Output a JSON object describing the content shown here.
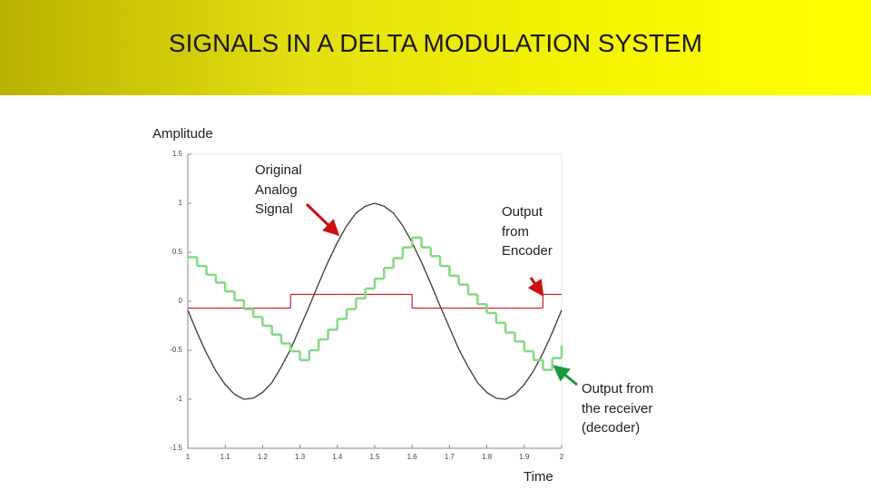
{
  "title": "SIGNALS IN A DELTA MODULATION SYSTEM",
  "chart_data": {
    "type": "line",
    "y_label": "Amplitude",
    "x_label": "Time",
    "xlim": [
      1,
      2
    ],
    "ylim": [
      -1.5,
      1.5
    ],
    "xticks": [
      1,
      1.1,
      1.2,
      1.3,
      1.4,
      1.5,
      1.6,
      1.7,
      1.8,
      1.9,
      2
    ],
    "yticks": [
      -1.5,
      -1,
      -0.5,
      0,
      0.5,
      1,
      1.5
    ],
    "x": [
      1,
      1.025,
      1.05,
      1.075,
      1.1,
      1.125,
      1.15,
      1.175,
      1.2,
      1.225,
      1.25,
      1.275,
      1.3,
      1.325,
      1.35,
      1.375,
      1.4,
      1.425,
      1.45,
      1.475,
      1.5,
      1.525,
      1.55,
      1.575,
      1.6,
      1.625,
      1.65,
      1.675,
      1.7,
      1.725,
      1.75,
      1.775,
      1.8,
      1.825,
      1.85,
      1.875,
      1.9,
      1.925,
      1.95,
      1.975,
      2
    ],
    "series": [
      {
        "color": "#3a3a3a",
        "step": false,
        "values": [
          -0.09,
          -0.32,
          -0.53,
          -0.71,
          -0.85,
          -0.95,
          -1.0,
          -0.99,
          -0.93,
          -0.83,
          -0.67,
          -0.49,
          -0.27,
          -0.05,
          0.18,
          0.4,
          0.6,
          0.77,
          0.9,
          0.97,
          1.0,
          0.97,
          0.9,
          0.77,
          0.6,
          0.4,
          0.18,
          -0.05,
          -0.27,
          -0.49,
          -0.67,
          -0.83,
          -0.93,
          -0.99,
          -1.0,
          -0.95,
          -0.85,
          -0.71,
          -0.53,
          -0.32,
          -0.09
        ]
      },
      {
        "color": "#d42020",
        "step": true,
        "values": [
          -0.07,
          -0.07,
          -0.07,
          -0.07,
          -0.07,
          -0.07,
          -0.07,
          -0.07,
          -0.07,
          -0.07,
          -0.07,
          0.07,
          0.07,
          0.07,
          0.07,
          0.07,
          0.07,
          0.07,
          0.07,
          0.07,
          0.07,
          0.07,
          0.07,
          0.07,
          -0.07,
          -0.07,
          -0.07,
          -0.07,
          -0.07,
          -0.07,
          -0.07,
          -0.07,
          -0.07,
          -0.07,
          -0.07,
          -0.07,
          -0.07,
          -0.07,
          0.07,
          0.07,
          0.07
        ]
      },
      {
        "color": "#86d886",
        "step": true,
        "values": [
          0.45,
          0.36,
          0.27,
          0.19,
          0.1,
          0.01,
          -0.08,
          -0.16,
          -0.25,
          -0.34,
          -0.43,
          -0.51,
          -0.6,
          -0.5,
          -0.39,
          -0.29,
          -0.18,
          -0.08,
          0.03,
          0.13,
          0.23,
          0.34,
          0.44,
          0.55,
          0.65,
          0.55,
          0.46,
          0.36,
          0.26,
          0.17,
          0.07,
          -0.03,
          -0.12,
          -0.22,
          -0.32,
          -0.41,
          -0.51,
          -0.6,
          -0.7,
          -0.58,
          -0.45
        ]
      }
    ],
    "annotations": [
      "Original Analog Signal",
      "Output from Encoder",
      "Output from the receiver (decoder)"
    ]
  }
}
